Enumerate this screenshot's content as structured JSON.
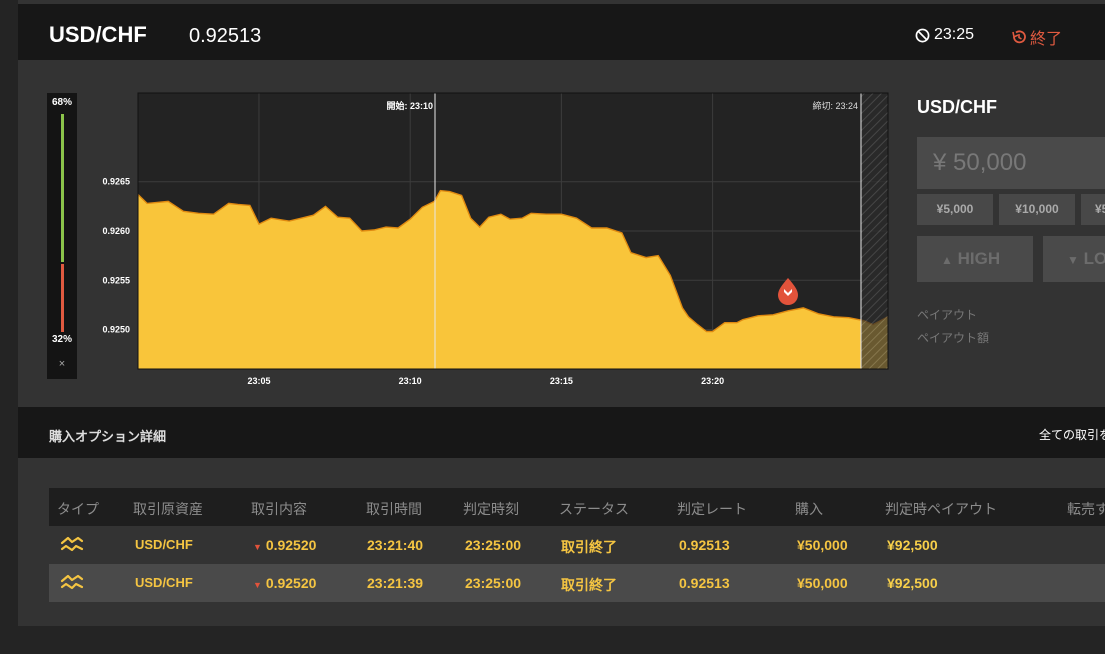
{
  "header": {
    "pair": "USD/CHF",
    "rate": "0.92513",
    "timer": "23:25",
    "end_label": "終了"
  },
  "gauge": {
    "high_pct": "68%",
    "low_pct": "32%",
    "close_label": "×",
    "high_color": "#8bc34a",
    "low_color": "#e05a40"
  },
  "chart_data": {
    "type": "area",
    "x_ticks": [
      "23:05",
      "23:10",
      "23:15",
      "23:20"
    ],
    "y_ticks": [
      "0.9265",
      "0.9260",
      "0.9255",
      "0.9250"
    ],
    "ylim": [
      0.9246,
      0.9274
    ],
    "start_marker": "開始: 23:10",
    "deadline_marker": "締切: 23:24",
    "fill_color": "#f9c53a",
    "x_minutes": [
      0,
      0.3,
      1,
      1.5,
      2,
      2.5,
      3,
      3.3,
      3.7,
      4,
      4.4,
      4.8,
      5,
      5.4,
      5.8,
      6.2,
      6.6,
      7,
      7.4,
      7.8,
      8.2,
      8.6,
      9,
      9.4,
      9.8,
      10,
      10.3,
      10.7,
      11,
      11.3,
      11.6,
      12,
      12.3,
      12.7,
      13,
      13.5,
      14,
      14.5,
      15,
      15.5,
      16,
      16.3,
      16.8,
      17.2,
      17.6,
      18,
      18.2,
      18.5,
      18.8,
      19,
      19.4,
      19.8,
      20,
      20.5,
      21,
      21.5,
      22,
      22.5,
      23,
      23.5,
      24,
      24.3,
      24.8
    ],
    "values": [
      0.92637,
      0.92628,
      0.9263,
      0.9262,
      0.92618,
      0.92617,
      0.92628,
      0.92627,
      0.92626,
      0.92607,
      0.92613,
      0.92611,
      0.9261,
      0.92613,
      0.92616,
      0.92625,
      0.92614,
      0.92613,
      0.926,
      0.92601,
      0.92604,
      0.92603,
      0.92612,
      0.92624,
      0.9263,
      0.92641,
      0.9264,
      0.92636,
      0.92613,
      0.92604,
      0.92614,
      0.92617,
      0.92612,
      0.92613,
      0.92618,
      0.92617,
      0.92617,
      0.92613,
      0.92603,
      0.92603,
      0.92598,
      0.92578,
      0.92573,
      0.92575,
      0.92555,
      0.92522,
      0.92513,
      0.92505,
      0.92498,
      0.92498,
      0.92507,
      0.92507,
      0.9251,
      0.92514,
      0.92515,
      0.92519,
      0.92522,
      0.92516,
      0.92513,
      0.92512,
      0.92509,
      0.92505,
      0.92513
    ]
  },
  "trade_marker_icon": "down-arrow-icon",
  "panel": {
    "title": "USD/CHF",
    "amount_value": "¥ 50,000",
    "quick_amounts": [
      "¥5,000",
      "¥10,000",
      "¥5"
    ],
    "high_label": "HIGH",
    "low_label": "LO",
    "payout_label": "ペイアウト",
    "payout_amount_label": "ペイアウト額"
  },
  "section": {
    "title": "購入オプション詳細",
    "all_trades_link": "全ての取引を"
  },
  "table": {
    "headers": [
      "タイプ",
      "取引原資産",
      "取引内容",
      "取引時間",
      "判定時刻",
      "ステータス",
      "判定レート",
      "購入",
      "判定時ペイアウト",
      "転売す"
    ],
    "rows": [
      {
        "type_icon": "highlow-icon",
        "asset": "USD/CHF",
        "direction_icon": "down-icon",
        "content": "0.92520",
        "time": "23:21:40",
        "judge_time": "23:25:00",
        "status": "取引終了",
        "judge_rate": "0.92513",
        "purchase": "¥50,000",
        "payout": "¥92,500"
      },
      {
        "type_icon": "highlow-icon",
        "asset": "USD/CHF",
        "direction_icon": "down-icon",
        "content": "0.92520",
        "time": "23:21:39",
        "judge_time": "23:25:00",
        "status": "取引終了",
        "judge_rate": "0.92513",
        "purchase": "¥50,000",
        "payout": "¥92,500"
      }
    ]
  }
}
